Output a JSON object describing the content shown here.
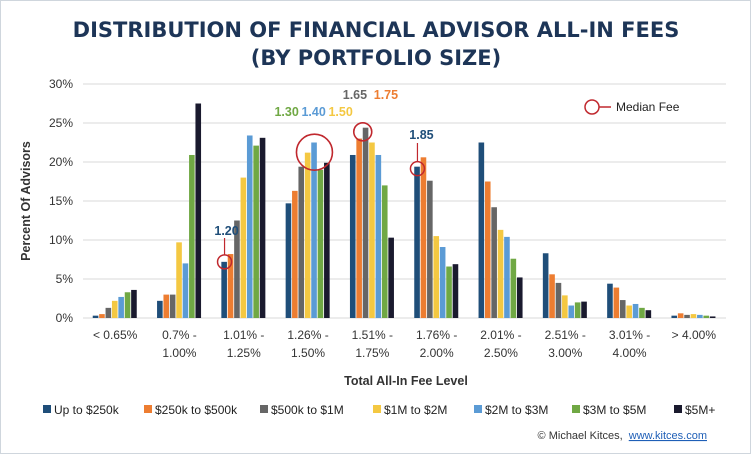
{
  "chart_data": {
    "type": "bar",
    "title": "DISTRIBUTION OF FINANCIAL ADVISOR ALL-IN FEES",
    "subtitle": "(BY PORTFOLIO SIZE)",
    "xlabel": "Total All-In Fee Level",
    "ylabel": "Percent Of Advisors",
    "ylim": [
      0,
      30
    ],
    "yticks": [
      "0%",
      "5%",
      "10%",
      "15%",
      "20%",
      "25%",
      "30%"
    ],
    "grid": true,
    "legend_position": "bottom",
    "categories": [
      [
        "< 0.65%",
        ""
      ],
      [
        "0.7% -",
        "1.00%"
      ],
      [
        "1.01% -",
        "1.25%"
      ],
      [
        "1.26% -",
        "1.50%"
      ],
      [
        "1.51% -",
        "1.75%"
      ],
      [
        "1.76% -",
        "2.00%"
      ],
      [
        "2.01% -",
        "2.50%"
      ],
      [
        "2.51% -",
        "3.00%"
      ],
      [
        "3.01% -",
        "4.00%"
      ],
      [
        "> 4.00%",
        ""
      ]
    ],
    "series": [
      {
        "name": "Up to $250k",
        "color": "#1f4e79",
        "values": [
          0.3,
          2.2,
          7.2,
          14.7,
          20.9,
          19.4,
          22.5,
          8.3,
          4.4,
          0.3
        ]
      },
      {
        "name": "$250k to $500k",
        "color": "#ed7d31",
        "values": [
          0.5,
          3.0,
          8.2,
          16.3,
          23.0,
          20.6,
          17.5,
          5.6,
          3.9,
          0.6
        ]
      },
      {
        "name": "$500k to $1M",
        "color": "#666666",
        "values": [
          1.3,
          3.0,
          12.5,
          19.4,
          24.4,
          17.6,
          14.2,
          4.5,
          2.3,
          0.4
        ]
      },
      {
        "name": "$1M to $2M",
        "color": "#f4c842",
        "values": [
          2.2,
          9.7,
          18.0,
          21.2,
          22.5,
          10.5,
          11.3,
          2.9,
          1.6,
          0.5
        ]
      },
      {
        "name": "$2M to $3M",
        "color": "#5b9bd5",
        "values": [
          2.7,
          7.0,
          23.4,
          22.5,
          20.9,
          9.1,
          10.4,
          1.6,
          1.8,
          0.4
        ]
      },
      {
        "name": "$3M to $5M",
        "color": "#70a844",
        "values": [
          3.3,
          20.9,
          22.1,
          19.0,
          17.0,
          6.6,
          7.6,
          2.0,
          1.3,
          0.3
        ]
      },
      {
        "name": "$5M+",
        "color": "#1a1a2e",
        "values": [
          3.6,
          27.5,
          23.1,
          19.9,
          10.3,
          6.9,
          5.2,
          2.1,
          1.0,
          0.2
        ]
      }
    ],
    "median_markers": [
      {
        "label": "1.20",
        "color": "#1f4e79",
        "category": 2,
        "series": 0,
        "value": 7.2,
        "connector": true
      },
      {
        "label": "1.30",
        "color": "#70a844",
        "category": 3,
        "series": 5,
        "value": 21.0,
        "connector": false
      },
      {
        "label": "1.40",
        "color": "#5b9bd5",
        "category": 3,
        "series": 4,
        "value": 21.0,
        "connector": false
      },
      {
        "label": "1.50",
        "color": "#f4c842",
        "category": 3,
        "series": 3,
        "value": 21.0,
        "connector": false
      },
      {
        "label": "1.65",
        "color": "#666666",
        "category": 4,
        "series": 2,
        "value": 24.0,
        "connector": false
      },
      {
        "label": "1.75",
        "color": "#ed7d31",
        "category": 4,
        "series": 1,
        "value": 24.0,
        "connector": false
      },
      {
        "label": "1.85",
        "color": "#1f4e79",
        "category": 5,
        "series": 0,
        "value": 19.4,
        "connector": true
      }
    ],
    "median_legend": "Median Fee",
    "median_circle_color": "#c0282e"
  },
  "footer": {
    "credit": "© Michael Kitces,",
    "link": "www.kitces.com"
  }
}
